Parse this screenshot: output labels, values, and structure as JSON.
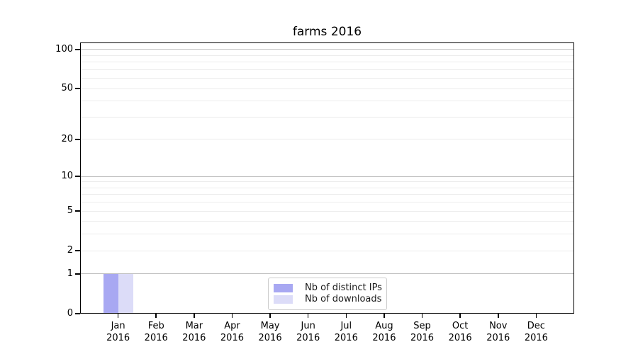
{
  "chart_data": {
    "type": "bar",
    "title": "farms 2016",
    "categories": [
      "Jan",
      "Feb",
      "Mar",
      "Apr",
      "May",
      "Jun",
      "Jul",
      "Aug",
      "Sep",
      "Oct",
      "Nov",
      "Dec"
    ],
    "x_tick_year": "2016",
    "series": [
      {
        "name": "Nb of distinct IPs",
        "color": "#a8a8f2",
        "values": [
          1,
          0,
          0,
          0,
          0,
          0,
          0,
          0,
          0,
          0,
          0,
          0
        ]
      },
      {
        "name": "Nb of downloads",
        "color": "#dcdcf8",
        "values": [
          1,
          0,
          0,
          0,
          0,
          0,
          0,
          0,
          0,
          0,
          0,
          0
        ]
      }
    ],
    "yscale": "log1p",
    "ylim": [
      0,
      113
    ],
    "y_ticks": [
      0,
      1,
      2,
      5,
      10,
      20,
      50,
      100
    ],
    "y_minor_ticks": [
      3,
      4,
      6,
      7,
      8,
      9,
      30,
      40,
      60,
      70,
      80,
      90
    ],
    "grid": "on",
    "legend_position": "lower center"
  },
  "colors": {
    "grid_decade": "#bfbfbf",
    "grid_minor": "#ececec",
    "spine": "#000000",
    "background": "#ffffff"
  }
}
